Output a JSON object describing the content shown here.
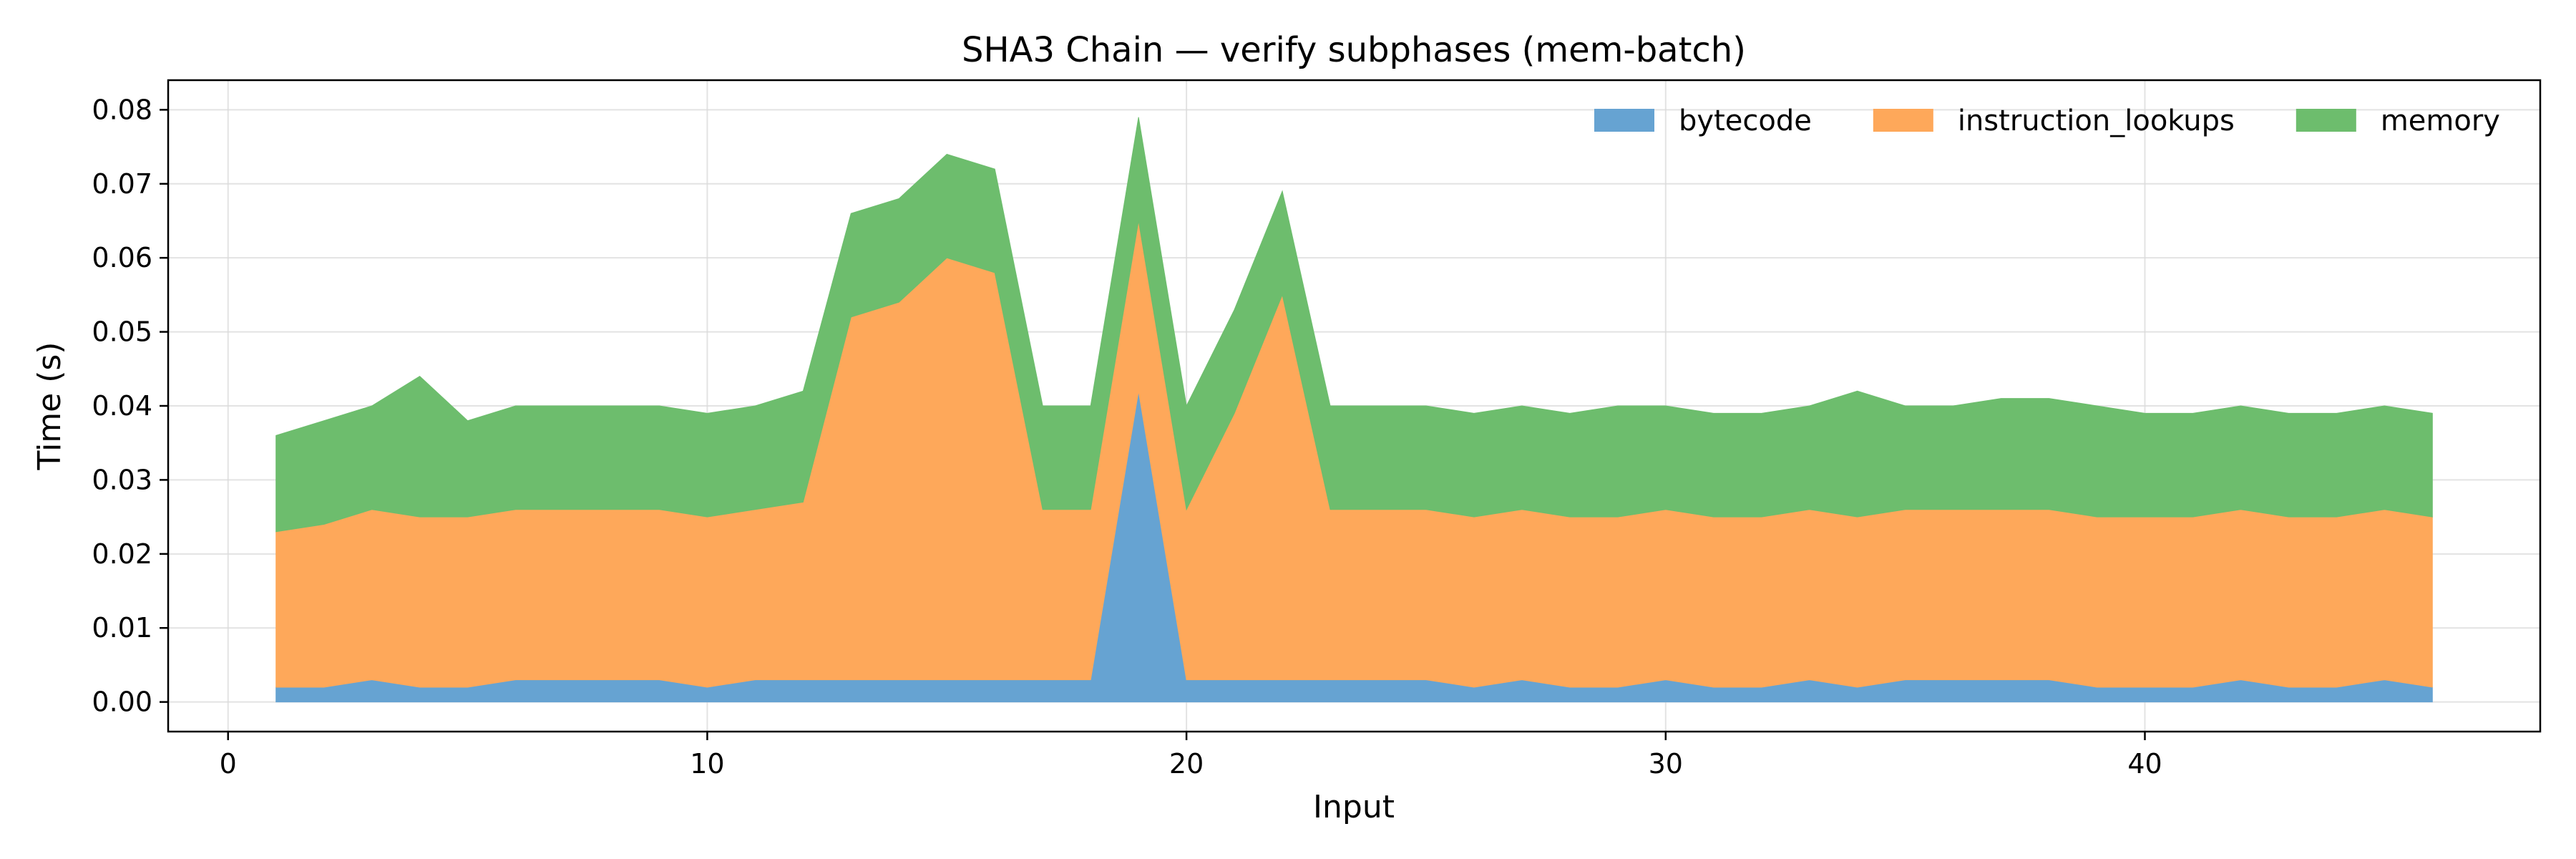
{
  "chart_data": {
    "type": "area",
    "stacked": true,
    "title": "SHA3 Chain — verify subphases (mem-batch)",
    "xlabel": "Input",
    "ylabel": "Time (s)",
    "xlim": [
      -1.25,
      48.25
    ],
    "ylim": [
      -0.004,
      0.084
    ],
    "xticks": [
      0,
      10,
      20,
      30,
      40
    ],
    "yticks": [
      0.0,
      0.01,
      0.02,
      0.03,
      0.04,
      0.05,
      0.06,
      0.07,
      0.08
    ],
    "ytick_labels": [
      "0.00",
      "0.01",
      "0.02",
      "0.03",
      "0.04",
      "0.05",
      "0.06",
      "0.07",
      "0.08"
    ],
    "grid": true,
    "legend": "top-right",
    "x": [
      1,
      2,
      3,
      4,
      5,
      6,
      7,
      8,
      9,
      10,
      11,
      12,
      13,
      14,
      15,
      16,
      17,
      18,
      19,
      20,
      21,
      22,
      23,
      24,
      25,
      26,
      27,
      28,
      29,
      30,
      31,
      32,
      33,
      34,
      35,
      36,
      37,
      38,
      39,
      40,
      41,
      42,
      43,
      44,
      45,
      46
    ],
    "series": [
      {
        "name": "bytecode",
        "color": "#66a3d2",
        "values": [
          0.002,
          0.002,
          0.003,
          0.002,
          0.002,
          0.003,
          0.003,
          0.003,
          0.003,
          0.002,
          0.003,
          0.003,
          0.003,
          0.003,
          0.003,
          0.003,
          0.003,
          0.003,
          0.042,
          0.003,
          0.003,
          0.003,
          0.003,
          0.003,
          0.003,
          0.002,
          0.003,
          0.002,
          0.002,
          0.003,
          0.002,
          0.002,
          0.003,
          0.002,
          0.003,
          0.003,
          0.003,
          0.003,
          0.002,
          0.002,
          0.002,
          0.003,
          0.002,
          0.002,
          0.003,
          0.002
        ]
      },
      {
        "name": "instruction_lookups",
        "color": "#fea85a",
        "values": [
          0.021,
          0.022,
          0.023,
          0.023,
          0.023,
          0.023,
          0.023,
          0.023,
          0.023,
          0.023,
          0.023,
          0.024,
          0.049,
          0.051,
          0.057,
          0.055,
          0.023,
          0.023,
          0.023,
          0.023,
          0.036,
          0.052,
          0.023,
          0.023,
          0.023,
          0.023,
          0.023,
          0.023,
          0.023,
          0.023,
          0.023,
          0.023,
          0.023,
          0.023,
          0.023,
          0.023,
          0.023,
          0.023,
          0.023,
          0.023,
          0.023,
          0.023,
          0.023,
          0.023,
          0.023,
          0.023
        ]
      },
      {
        "name": "memory",
        "color": "#6dbd6d",
        "values": [
          0.013,
          0.014,
          0.014,
          0.019,
          0.013,
          0.014,
          0.014,
          0.014,
          0.014,
          0.014,
          0.014,
          0.015,
          0.014,
          0.014,
          0.014,
          0.014,
          0.014,
          0.014,
          0.014,
          0.014,
          0.014,
          0.014,
          0.014,
          0.014,
          0.014,
          0.014,
          0.014,
          0.014,
          0.015,
          0.014,
          0.014,
          0.014,
          0.014,
          0.017,
          0.014,
          0.014,
          0.015,
          0.015,
          0.015,
          0.014,
          0.014,
          0.014,
          0.014,
          0.014,
          0.014,
          0.014
        ]
      }
    ]
  }
}
